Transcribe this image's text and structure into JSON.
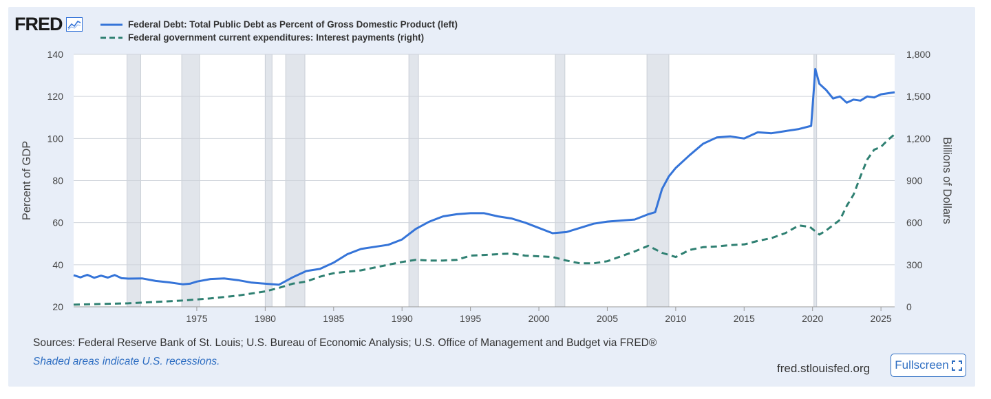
{
  "header": {
    "logo_text": "FRED",
    "logo_icon": "line-chart-icon"
  },
  "legend": [
    {
      "label": "Federal Debt: Total Public Debt as Percent of Gross Domestic Product (left)",
      "color": "#3574d8",
      "style": "solid"
    },
    {
      "label": "Federal government current expenditures: Interest payments (right)",
      "color": "#2f8072",
      "style": "dashed"
    }
  ],
  "footer": {
    "sources": "Sources: Federal Reserve Bank of St. Louis; U.S. Bureau of Economic Analysis; U.S. Office of Management and Budget via FRED®",
    "note": "Shaded areas indicate U.S. recessions.",
    "site": "fred.stlouisfed.org",
    "fullscreen_label": "Fullscreen",
    "fullscreen_icon": "fullscreen-icon"
  },
  "chart_data": {
    "type": "line",
    "xlim": [
      1966.0,
      2026.0
    ],
    "x_ticks": [
      "1975",
      "1980",
      "1985",
      "1990",
      "1995",
      "2000",
      "2005",
      "2010",
      "2015",
      "2020",
      "2025"
    ],
    "y_left": {
      "label": "Percent of GDP",
      "lim": [
        20,
        140
      ],
      "ticks": [
        "20",
        "40",
        "60",
        "80",
        "100",
        "120",
        "140"
      ]
    },
    "y_right": {
      "label": "Billions of Dollars",
      "lim": [
        0,
        1800
      ],
      "ticks": [
        "0",
        "300",
        "600",
        "900",
        "1,200",
        "1,500",
        "1,800"
      ]
    },
    "grid": true,
    "recessions": [
      [
        1969.9,
        1970.9
      ],
      [
        1973.9,
        1975.2
      ],
      [
        1980.0,
        1980.5
      ],
      [
        1981.5,
        1982.9
      ],
      [
        1990.5,
        1991.2
      ],
      [
        2001.2,
        2001.9
      ],
      [
        2007.9,
        2009.5
      ],
      [
        2020.1,
        2020.3
      ]
    ],
    "series": [
      {
        "name": "Federal Debt: Total Public Debt as Percent of Gross Domestic Product",
        "axis": "left",
        "color": "#3574d8",
        "x": [
          1966.0,
          1966.5,
          1967.0,
          1967.5,
          1968.0,
          1968.5,
          1969.0,
          1969.5,
          1970.0,
          1971.0,
          1972.0,
          1973.0,
          1974.0,
          1974.5,
          1975.0,
          1976.0,
          1977.0,
          1978.0,
          1979.0,
          1980.0,
          1981.0,
          1982.0,
          1983.0,
          1984.0,
          1985.0,
          1986.0,
          1987.0,
          1988.0,
          1989.0,
          1990.0,
          1991.0,
          1992.0,
          1993.0,
          1994.0,
          1995.0,
          1996.0,
          1997.0,
          1998.0,
          1999.0,
          2000.0,
          2001.0,
          2002.0,
          2003.0,
          2004.0,
          2005.0,
          2006.0,
          2007.0,
          2008.0,
          2008.5,
          2009.0,
          2009.5,
          2010.0,
          2011.0,
          2012.0,
          2013.0,
          2014.0,
          2015.0,
          2016.0,
          2017.0,
          2018.0,
          2019.0,
          2019.9,
          2020.2,
          2020.5,
          2021.0,
          2021.5,
          2022.0,
          2022.5,
          2023.0,
          2023.5,
          2024.0,
          2024.5,
          2025.0,
          2025.5,
          2026.0
        ],
        "values": [
          35.0,
          34.0,
          35.2,
          33.8,
          34.8,
          33.9,
          35.1,
          33.6,
          33.4,
          33.5,
          32.3,
          31.6,
          30.7,
          31.0,
          32.0,
          33.2,
          33.5,
          32.7,
          31.5,
          31.0,
          30.5,
          34.0,
          37.0,
          38.0,
          41.0,
          45.0,
          47.5,
          48.5,
          49.5,
          52.0,
          57.0,
          60.5,
          63.0,
          64.0,
          64.5,
          64.5,
          63.0,
          62.0,
          60.0,
          57.5,
          55.0,
          55.5,
          57.5,
          59.5,
          60.5,
          61.0,
          61.5,
          64.0,
          65.0,
          76.0,
          82.0,
          86.0,
          92.0,
          97.5,
          100.5,
          101.0,
          100.0,
          103.0,
          102.5,
          103.5,
          104.5,
          106.0,
          133.0,
          126.0,
          123.0,
          119.0,
          120.0,
          117.0,
          118.5,
          118.0,
          120.0,
          119.5,
          121.0,
          121.5,
          122.0
        ]
      },
      {
        "name": "Federal government current expenditures: Interest payments",
        "axis": "right",
        "color": "#2f8072",
        "x": [
          1966.0,
          1968.0,
          1970.0,
          1972.0,
          1974.0,
          1976.0,
          1978.0,
          1980.0,
          1981.0,
          1982.0,
          1983.0,
          1984.0,
          1985.0,
          1986.0,
          1987.0,
          1988.0,
          1989.0,
          1990.0,
          1991.0,
          1992.0,
          1993.0,
          1994.0,
          1995.0,
          1996.0,
          1997.0,
          1998.0,
          1999.0,
          2000.0,
          2001.0,
          2002.0,
          2003.0,
          2004.0,
          2005.0,
          2006.0,
          2007.0,
          2008.0,
          2009.0,
          2010.0,
          2011.0,
          2012.0,
          2013.0,
          2014.0,
          2015.0,
          2016.0,
          2017.0,
          2018.0,
          2019.0,
          2019.8,
          2020.5,
          2021.0,
          2022.0,
          2022.5,
          2023.0,
          2023.5,
          2024.0,
          2024.5,
          2025.0,
          2025.5,
          2026.0
        ],
        "values": [
          15,
          20,
          25,
          35,
          45,
          60,
          80,
          110,
          135,
          165,
          180,
          215,
          240,
          250,
          260,
          280,
          300,
          320,
          335,
          330,
          330,
          335,
          365,
          370,
          375,
          380,
          365,
          360,
          355,
          330,
          310,
          310,
          325,
          360,
          395,
          435,
          385,
          355,
          405,
          425,
          430,
          440,
          445,
          470,
          490,
          525,
          580,
          570,
          515,
          545,
          620,
          720,
          800,
          930,
          1050,
          1120,
          1140,
          1190,
          1230
        ]
      }
    ]
  }
}
